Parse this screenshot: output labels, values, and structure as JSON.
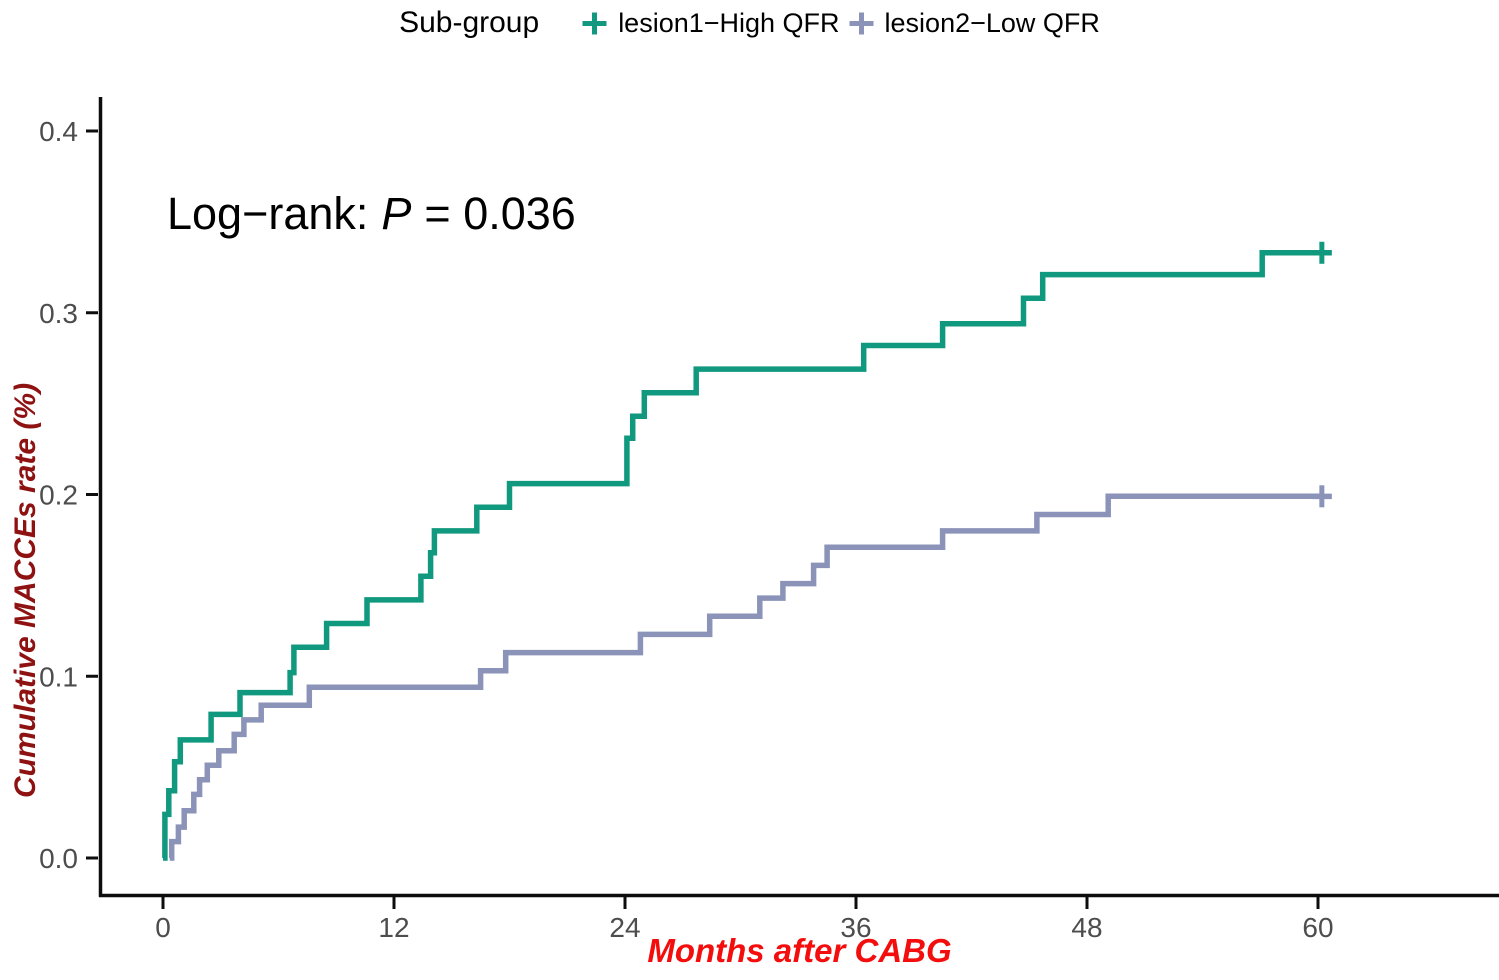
{
  "legend": {
    "title": "Sub-group",
    "items": [
      {
        "label": "lesion1−High QFR",
        "color": "#10997E"
      },
      {
        "label": "lesion2−Low QFR",
        "color": "#8B93B8"
      }
    ]
  },
  "annotation": {
    "prefix": "Log−rank:",
    "p_symbol": "P",
    "p_rest": "= 0.036"
  },
  "chart_data": {
    "type": "line",
    "subtype": "kaplan-meier-cumulative-incidence-step",
    "title": "",
    "xlabel": "Months after CABG",
    "ylabel": "Cumulative MACCEs rate (%)",
    "xlim": [
      0,
      69.4
    ],
    "ylim": [
      0,
      0.419
    ],
    "x_ticks": [
      0,
      12,
      24,
      36,
      48,
      60
    ],
    "y_tick_labels": [
      "0.0",
      "0.1",
      "0.2",
      "0.3",
      "0.4"
    ],
    "grid": false,
    "legend_position": "top-center",
    "log_rank_p": "0.036",
    "axis_color": "#0D0D0D",
    "tick_label_color": "#4D4D4D",
    "xlabel_color": "#F40D0D",
    "ylabel_color": "#8E1212",
    "series": [
      {
        "name": "lesion1−High QFR",
        "color": "#10997E",
        "points": [
          [
            0,
            0
          ],
          [
            0.1,
            0.024
          ],
          [
            0.3,
            0.037
          ],
          [
            0.6,
            0.053
          ],
          [
            0.9,
            0.065
          ],
          [
            2.5,
            0.079
          ],
          [
            4,
            0.091
          ],
          [
            6.6,
            0.102
          ],
          [
            6.8,
            0.116
          ],
          [
            8.5,
            0.129
          ],
          [
            10.6,
            0.142
          ],
          [
            13.4,
            0.155
          ],
          [
            13.9,
            0.168
          ],
          [
            14.1,
            0.18
          ],
          [
            16.3,
            0.193
          ],
          [
            18,
            0.206
          ],
          [
            24.1,
            0.231
          ],
          [
            24.4,
            0.243
          ],
          [
            25,
            0.256
          ],
          [
            27.7,
            0.269
          ],
          [
            36.4,
            0.282
          ],
          [
            40.5,
            0.294
          ],
          [
            44.7,
            0.308
          ],
          [
            45.7,
            0.321
          ],
          [
            57.1,
            0.333
          ],
          [
            60.2,
            0.333
          ]
        ],
        "censors": [
          [
            60.2,
            0.333
          ]
        ]
      },
      {
        "name": "lesion2−Low QFR",
        "color": "#8B93B8",
        "points": [
          [
            0.35,
            0
          ],
          [
            0.45,
            0.009
          ],
          [
            0.8,
            0.017
          ],
          [
            1.1,
            0.026
          ],
          [
            1.6,
            0.035
          ],
          [
            1.9,
            0.043
          ],
          [
            2.3,
            0.051
          ],
          [
            2.9,
            0.059
          ],
          [
            3.7,
            0.068
          ],
          [
            4.2,
            0.076
          ],
          [
            5.1,
            0.084
          ],
          [
            7.6,
            0.094
          ],
          [
            16.5,
            0.103
          ],
          [
            17.8,
            0.113
          ],
          [
            24.8,
            0.123
          ],
          [
            28.4,
            0.133
          ],
          [
            31,
            0.143
          ],
          [
            32.2,
            0.151
          ],
          [
            33.8,
            0.161
          ],
          [
            34.5,
            0.171
          ],
          [
            40.5,
            0.18
          ],
          [
            45.4,
            0.189
          ],
          [
            49.1,
            0.199
          ],
          [
            60.2,
            0.199
          ]
        ],
        "censors": [
          [
            60.2,
            0.199
          ]
        ]
      }
    ]
  }
}
